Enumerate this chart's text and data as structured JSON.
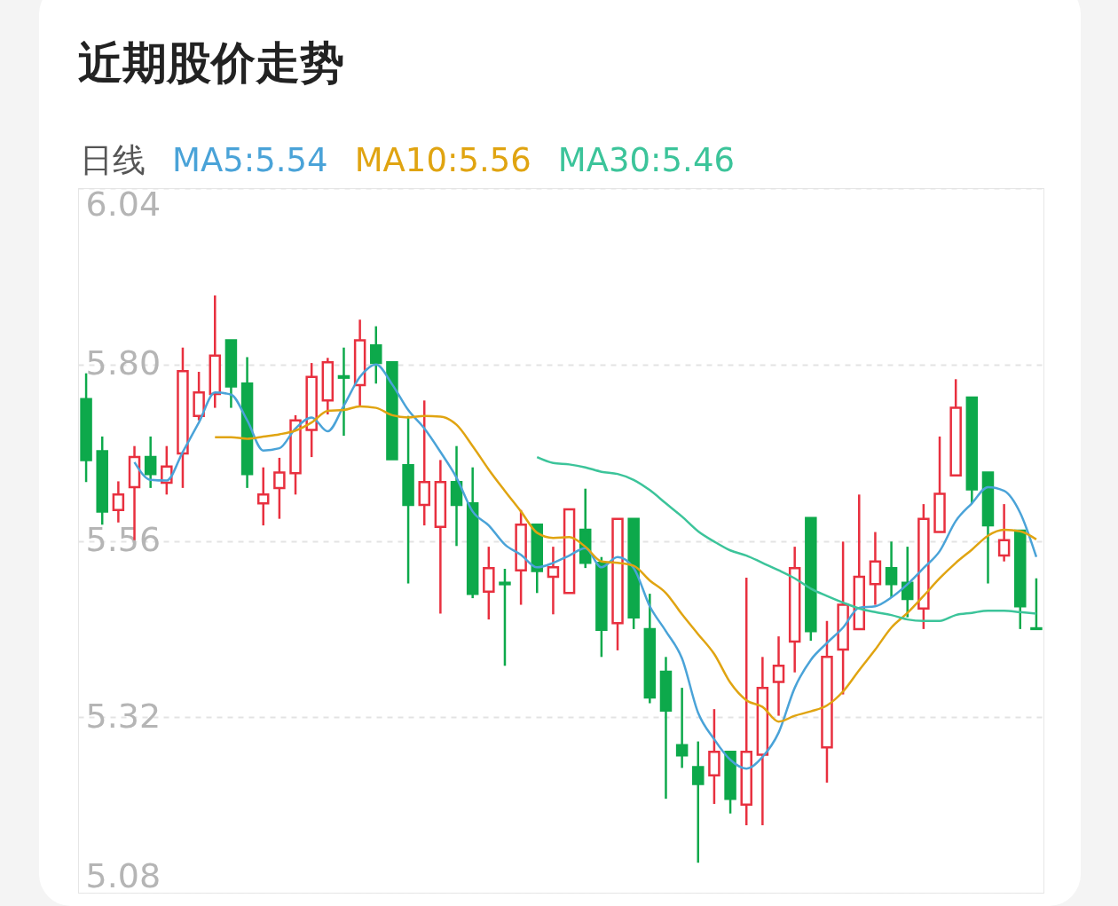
{
  "chart_data": {
    "type": "candlestick",
    "title": "近期股价走势",
    "legend_title": "日线",
    "legend": "top left",
    "grid": "y",
    "tick_labels": "y",
    "categories": [
      null,
      null,
      null,
      null,
      null,
      null,
      null,
      null,
      null,
      null,
      null,
      null,
      null,
      null,
      null,
      null,
      null,
      null,
      null,
      null,
      null,
      null,
      null,
      null,
      null,
      null,
      null,
      null,
      null,
      null,
      null,
      null,
      null,
      null,
      null,
      null,
      null,
      null,
      null,
      null,
      null,
      null,
      null,
      null,
      null,
      null,
      null,
      null,
      null,
      null,
      null,
      null,
      null,
      null,
      null,
      null,
      null,
      null,
      null,
      null
    ],
    "ylim": [
      5.08,
      6.04
    ],
    "yticks": [
      5.08,
      5.32,
      5.56,
      {
        "value": 5.8,
        "label": "5.80"
      },
      6.04
    ],
    "ohlc": [
      [
        5.753,
        5.788,
        5.64,
        5.67
      ],
      [
        5.682,
        5.702,
        5.582,
        5.6
      ],
      [
        5.602,
        5.641,
        5.585,
        5.623
      ],
      [
        5.633,
        5.689,
        5.561,
        5.674
      ],
      [
        5.674,
        5.702,
        5.632,
        5.651
      ],
      [
        5.639,
        5.689,
        5.623,
        5.661
      ],
      [
        5.679,
        5.823,
        5.632,
        5.791
      ],
      [
        5.73,
        5.79,
        5.724,
        5.762
      ],
      [
        5.76,
        5.894,
        5.741,
        5.812
      ],
      [
        5.833,
        5.833,
        5.741,
        5.77
      ],
      [
        5.774,
        5.81,
        5.632,
        5.651
      ],
      [
        5.611,
        5.66,
        5.581,
        5.623
      ],
      [
        5.632,
        5.673,
        5.59,
        5.653
      ],
      [
        5.652,
        5.731,
        5.623,
        5.724
      ],
      [
        5.711,
        5.802,
        5.674,
        5.783
      ],
      [
        5.751,
        5.809,
        5.732,
        5.803
      ],
      [
        5.784,
        5.823,
        5.703,
        5.782
      ],
      [
        5.772,
        5.861,
        5.744,
        5.833
      ],
      [
        5.826,
        5.852,
        5.774,
        5.802
      ],
      [
        5.803,
        5.803,
        5.671,
        5.671
      ],
      [
        5.663,
        5.73,
        5.502,
        5.609
      ],
      [
        5.609,
        5.751,
        5.581,
        5.64
      ],
      [
        5.579,
        5.67,
        5.461,
        5.64
      ],
      [
        5.64,
        5.689,
        5.553,
        5.609
      ],
      [
        5.611,
        5.66,
        5.482,
        5.488
      ],
      [
        5.491,
        5.552,
        5.453,
        5.523
      ],
      [
        5.503,
        5.522,
        5.39,
        5.501
      ],
      [
        5.52,
        5.602,
        5.473,
        5.582
      ],
      [
        5.582,
        5.582,
        5.489,
        5.519
      ],
      [
        5.511,
        5.552,
        5.46,
        5.524
      ],
      [
        5.489,
        5.603,
        5.489,
        5.603
      ],
      [
        5.575,
        5.631,
        5.523,
        5.53
      ],
      [
        5.53,
        5.538,
        5.402,
        5.439
      ],
      [
        5.448,
        5.59,
        5.411,
        5.59
      ],
      [
        5.59,
        5.59,
        5.44,
        5.456
      ],
      [
        5.44,
        5.488,
        5.339,
        5.347
      ],
      [
        5.382,
        5.402,
        5.209,
        5.329
      ],
      [
        5.282,
        5.36,
        5.251,
        5.268
      ],
      [
        5.252,
        5.287,
        5.122,
        5.229
      ],
      [
        5.241,
        5.331,
        5.202,
        5.273
      ],
      [
        5.273,
        5.273,
        5.189,
        5.209
      ],
      [
        5.201,
        5.51,
        5.173,
        5.273
      ],
      [
        5.269,
        5.402,
        5.173,
        5.36
      ],
      [
        5.368,
        5.43,
        5.322,
        5.39
      ],
      [
        5.423,
        5.552,
        5.381,
        5.523
      ],
      [
        5.591,
        5.591,
        5.424,
        5.437
      ],
      [
        5.279,
        5.451,
        5.231,
        5.402
      ],
      [
        5.412,
        5.559,
        5.351,
        5.473
      ],
      [
        5.44,
        5.623,
        5.44,
        5.511
      ],
      [
        5.501,
        5.572,
        5.473,
        5.532
      ],
      [
        5.523,
        5.559,
        5.483,
        5.501
      ],
      [
        5.503,
        5.552,
        5.456,
        5.481
      ],
      [
        5.468,
        5.61,
        5.44,
        5.59
      ],
      [
        5.572,
        5.702,
        5.572,
        5.624
      ],
      [
        5.649,
        5.78,
        5.649,
        5.741
      ],
      [
        5.755,
        5.755,
        5.611,
        5.63
      ],
      [
        5.653,
        5.653,
        5.502,
        5.581
      ],
      [
        5.54,
        5.61,
        5.532,
        5.561
      ],
      [
        5.574,
        5.574,
        5.44,
        5.471
      ],
      [
        5.441,
        5.509,
        5.44,
        5.44
      ]
    ],
    "colors": [
      "#0da94b",
      "#0da94b",
      "#e8303f",
      "#e8303f",
      "#0da94b",
      "#e8303f",
      "#e8303f",
      "#e8303f",
      "#e8303f",
      "#0da94b",
      "#0da94b",
      "#e8303f",
      "#e8303f",
      "#e8303f",
      "#e8303f",
      "#e8303f",
      "#0da94b",
      "#e8303f",
      "#0da94b",
      "#0da94b",
      "#0da94b",
      "#e8303f",
      "#e8303f",
      "#0da94b",
      "#0da94b",
      "#e8303f",
      "#0da94b",
      "#e8303f",
      "#0da94b",
      "#e8303f",
      "#e8303f",
      "#0da94b",
      "#0da94b",
      "#e8303f",
      "#0da94b",
      "#0da94b",
      "#0da94b",
      "#0da94b",
      "#0da94b",
      "#e8303f",
      "#0da94b",
      "#e8303f",
      "#e8303f",
      "#e8303f",
      "#e8303f",
      "#0da94b",
      "#e8303f",
      "#e8303f",
      "#e8303f",
      "#e8303f",
      "#0da94b",
      "#0da94b",
      "#e8303f",
      "#e8303f",
      "#e8303f",
      "#0da94b",
      "#0da94b",
      "#e8303f",
      "#0da94b",
      "#0da94b"
    ],
    "series": [
      {
        "type": "line",
        "name": "MA5:5.54",
        "color": "#4aa3d8",
        "values": [
          null,
          null,
          null,
          5.667,
          5.643,
          5.642,
          5.681,
          5.721,
          5.762,
          5.759,
          5.724,
          5.683,
          5.686,
          5.713,
          5.728,
          5.709,
          5.744,
          5.783,
          5.8,
          5.773,
          5.738,
          5.713,
          5.681,
          5.646,
          5.6,
          5.581,
          5.555,
          5.541,
          5.524,
          5.53,
          5.54,
          5.55,
          5.524,
          5.538,
          5.523,
          5.471,
          5.437,
          5.4,
          5.326,
          5.29,
          5.262,
          5.25,
          5.266,
          5.299,
          5.36,
          5.398,
          5.421,
          5.442,
          5.469,
          5.471,
          5.483,
          5.501,
          5.523,
          5.546,
          5.587,
          5.611,
          5.633,
          5.628,
          5.598,
          5.538
        ]
      },
      {
        "type": "line",
        "name": "MA10:5.56",
        "color": "#e0a411",
        "values": [
          null,
          null,
          null,
          null,
          null,
          null,
          null,
          null,
          5.701,
          5.701,
          5.699,
          5.702,
          5.705,
          5.71,
          5.721,
          5.737,
          5.738,
          5.743,
          5.741,
          5.731,
          5.728,
          5.73,
          5.729,
          5.718,
          5.689,
          5.657,
          5.628,
          5.6,
          5.571,
          5.564,
          5.565,
          5.552,
          5.532,
          5.53,
          5.526,
          5.506,
          5.489,
          5.46,
          5.433,
          5.406,
          5.367,
          5.343,
          5.334,
          5.314,
          5.322,
          5.328,
          5.336,
          5.355,
          5.384,
          5.412,
          5.442,
          5.462,
          5.485,
          5.509,
          5.53,
          5.548,
          5.567,
          5.575,
          5.573,
          5.562
        ]
      },
      {
        "type": "line",
        "name": "MA30:5.46",
        "color": "#3cc49a",
        "values": [
          null,
          null,
          null,
          null,
          null,
          null,
          null,
          null,
          null,
          null,
          null,
          null,
          null,
          null,
          null,
          null,
          null,
          null,
          null,
          null,
          null,
          null,
          null,
          null,
          null,
          null,
          null,
          null,
          5.674,
          5.666,
          5.664,
          5.66,
          5.654,
          5.651,
          5.643,
          5.629,
          5.611,
          5.593,
          5.573,
          5.559,
          5.547,
          5.54,
          5.53,
          5.52,
          5.509,
          5.495,
          5.485,
          5.476,
          5.468,
          5.463,
          5.459,
          5.453,
          5.451,
          5.451,
          5.459,
          5.462,
          5.465,
          5.465,
          5.463,
          5.461
        ]
      }
    ]
  }
}
